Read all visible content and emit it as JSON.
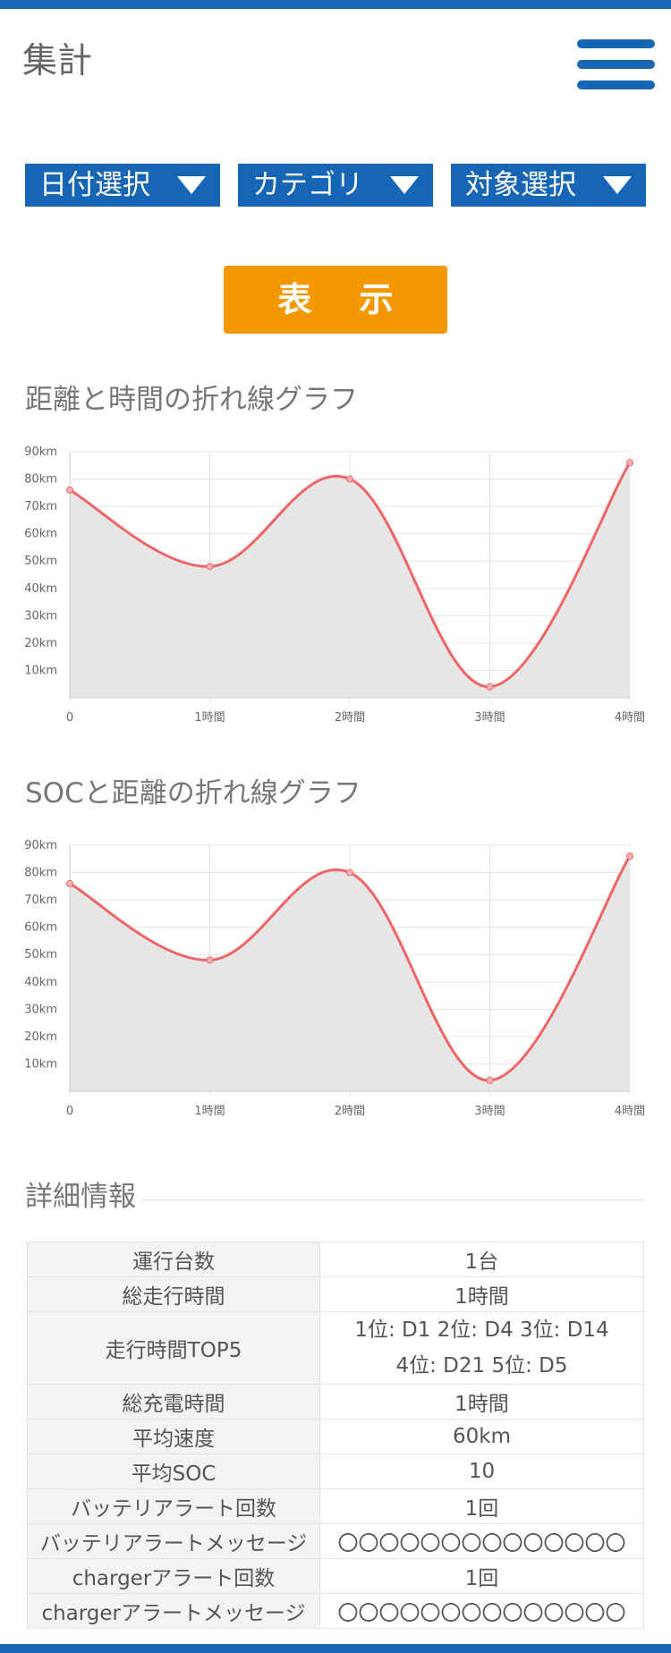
{
  "header": {
    "title": "集計",
    "menu_icon": "hamburger-menu-icon"
  },
  "filters": [
    {
      "label": "日付選択"
    },
    {
      "label": "カテゴリ"
    },
    {
      "label": "対象選択"
    }
  ],
  "show_button": {
    "label": "表 示"
  },
  "colors": {
    "brand": "#1766b5",
    "accent": "#f39800",
    "line": "#f06466",
    "fill": "#e6e6e6"
  },
  "chart_data": [
    {
      "type": "line",
      "title": "距離と時間の折れ線グラフ",
      "categories": [
        "0",
        "1時間",
        "2時間",
        "3時間",
        "4時間"
      ],
      "values": [
        76,
        48,
        80,
        4,
        86
      ],
      "ylim": [
        0,
        90
      ],
      "yticks": [
        "10km",
        "20km",
        "30km",
        "40km",
        "50km",
        "60km",
        "70km",
        "80km",
        "90km"
      ],
      "grid": true
    },
    {
      "type": "line",
      "title": "SOCと距離の折れ線グラフ",
      "categories": [
        "0",
        "1時間",
        "2時間",
        "3時間",
        "4時間"
      ],
      "values": [
        76,
        48,
        80,
        4,
        86
      ],
      "ylim": [
        0,
        90
      ],
      "yticks": [
        "10km",
        "20km",
        "30km",
        "40km",
        "50km",
        "60km",
        "70km",
        "80km",
        "90km"
      ],
      "grid": true
    }
  ],
  "details": {
    "title": "詳細情報",
    "rows": [
      {
        "label": "運行台数",
        "value": "1台"
      },
      {
        "label": "総走行時間",
        "value": "1時間"
      },
      {
        "label": "走行時間TOP5",
        "value_line1": "1位: D1 2位: D4 3位: D14",
        "value_line2": "4位: D21 5位: D5"
      },
      {
        "label": "総充電時間",
        "value": "1時間"
      },
      {
        "label": "平均速度",
        "value": "60km"
      },
      {
        "label": "平均SOC",
        "value": "10"
      },
      {
        "label": "バッテリアラート回数",
        "value": "1回"
      },
      {
        "label": "バッテリアラートメッセージ",
        "value": "〇〇〇〇〇〇〇〇〇〇〇〇〇〇"
      },
      {
        "label": "chargerアラート回数",
        "value": "1回"
      },
      {
        "label": "chargerアラートメッセージ",
        "value": "〇〇〇〇〇〇〇〇〇〇〇〇〇〇"
      }
    ]
  }
}
